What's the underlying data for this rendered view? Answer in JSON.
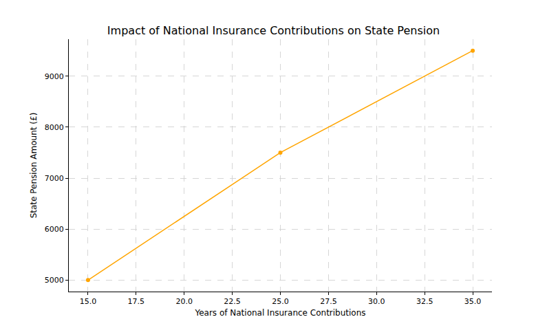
{
  "chart_data": {
    "type": "line",
    "title": "Impact of National Insurance Contributions on State Pension",
    "x_label": "Years of National Insurance Contributions",
    "y_label": "State Pension Amount (£)",
    "x": [
      15,
      25,
      35
    ],
    "values": [
      5000,
      7500,
      9500
    ],
    "color": "#ffa500",
    "marker": "circle",
    "line_style": "solid",
    "xlim": [
      14,
      36
    ],
    "xticks": [
      {
        "value": 15,
        "label": "15.0"
      },
      17.5,
      {
        "value": 20,
        "label": "20.0"
      },
      22.5,
      {
        "value": 25,
        "label": "25.0"
      },
      27.5,
      {
        "value": 30,
        "label": "30.0"
      },
      32.5,
      {
        "value": 35,
        "label": "35.0"
      }
    ],
    "ylim": [
      4775,
      9725
    ],
    "yticks": [
      5000,
      6000,
      7000,
      8000,
      9000
    ],
    "grid": true
  }
}
